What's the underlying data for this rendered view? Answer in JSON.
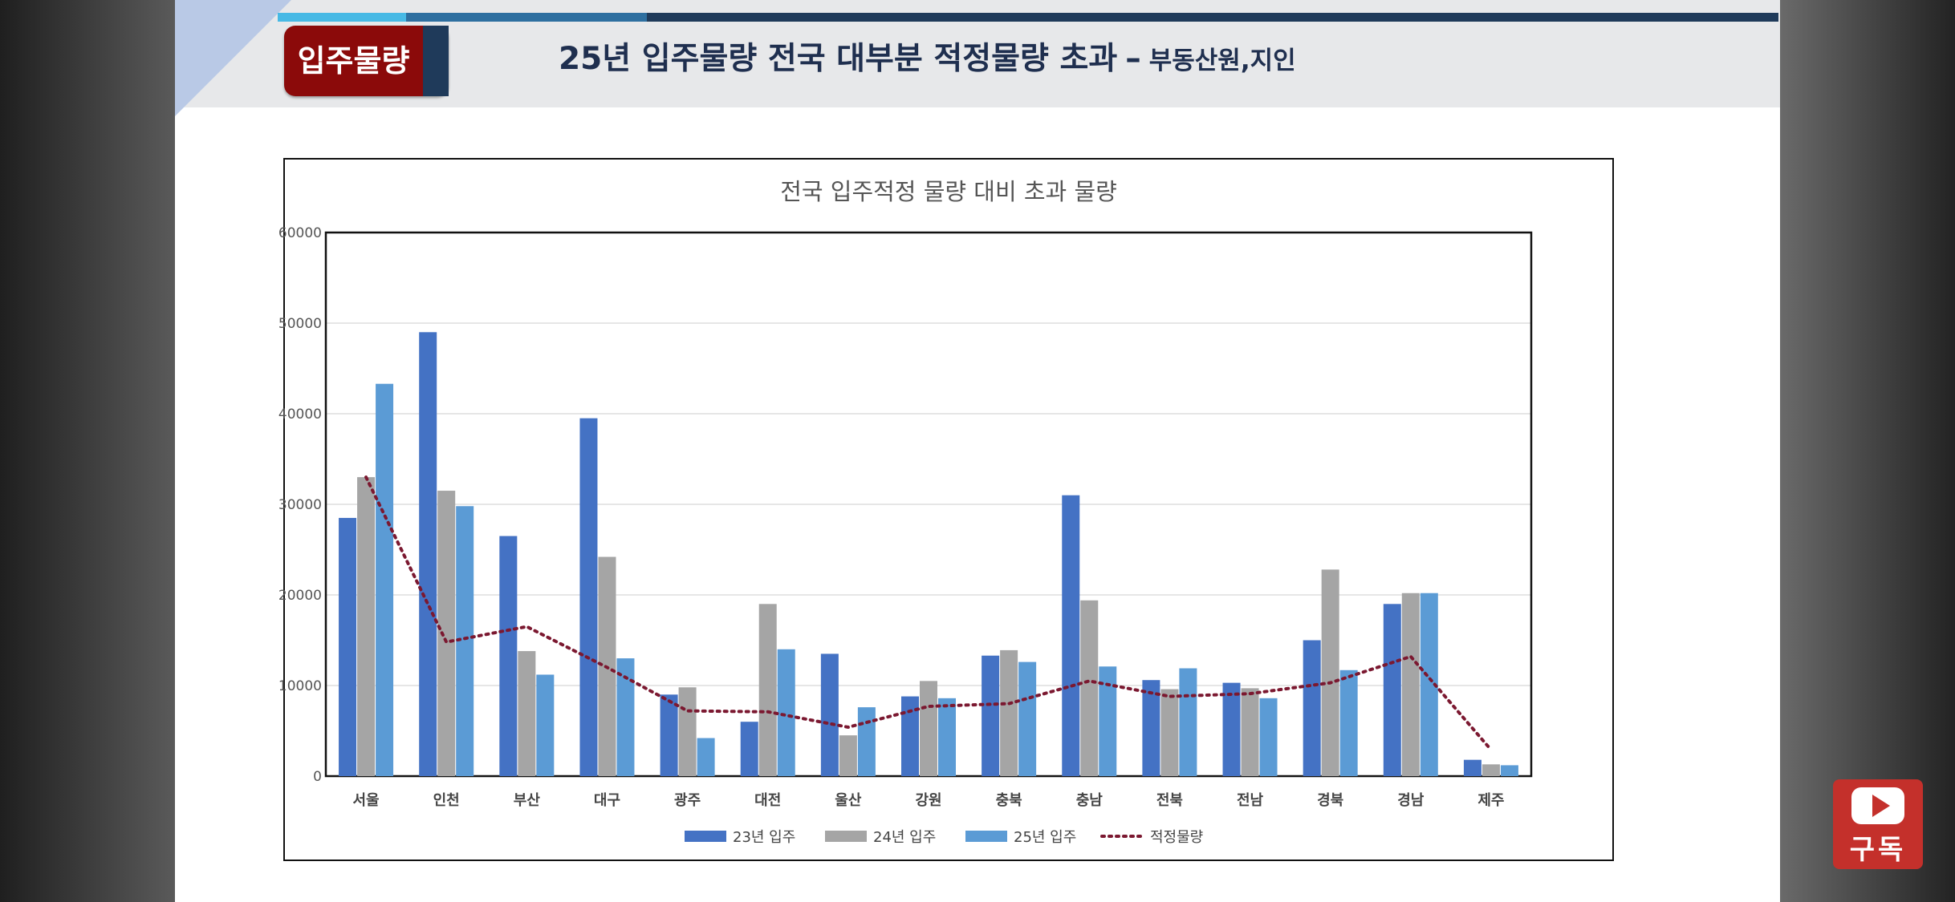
{
  "slide": {
    "badge": "입주물량",
    "headline": "25년 입주물량  전국 대부분 적정물량 초과",
    "separator": "–",
    "source": "부동산원,지인"
  },
  "youtube": {
    "label": "구독",
    "icon": "youtube-play-icon"
  },
  "colors": {
    "y23": "#4472c4",
    "y24": "#a5a5a5",
    "y25": "#5b9bd5",
    "proper": "#7b1830",
    "badge": "#8b0a0a",
    "headline": "#1f2f4f"
  },
  "chart_data": {
    "type": "bar",
    "title": "전국 입주적정 물량 대비 초과 물량",
    "xlabel": "",
    "ylabel": "",
    "ylim": [
      0,
      60000
    ],
    "yticks": [
      0,
      10000,
      20000,
      30000,
      40000,
      50000,
      60000
    ],
    "grid": true,
    "legend_position": "bottom",
    "categories": [
      "서울",
      "인천",
      "부산",
      "대구",
      "광주",
      "대전",
      "울산",
      "강원",
      "충북",
      "충남",
      "전북",
      "전남",
      "경북",
      "경남",
      "제주"
    ],
    "series": [
      {
        "name": "23년 입주",
        "type": "bar",
        "values": [
          28500,
          49000,
          26500,
          39500,
          9000,
          6000,
          13500,
          8800,
          13300,
          31000,
          10600,
          10300,
          15000,
          19000,
          1800
        ]
      },
      {
        "name": "24년 입주",
        "type": "bar",
        "values": [
          33000,
          31500,
          13800,
          24200,
          9800,
          19000,
          4500,
          10500,
          13900,
          19400,
          9600,
          9700,
          22800,
          20200,
          1300
        ]
      },
      {
        "name": "25년 입주",
        "type": "bar",
        "values": [
          43300,
          29800,
          11200,
          13000,
          4200,
          14000,
          7600,
          8600,
          12600,
          12100,
          11900,
          8600,
          11700,
          20200,
          1200
        ]
      },
      {
        "name": "적정물량",
        "type": "line",
        "style": "dotted",
        "values": [
          33000,
          14800,
          16500,
          12000,
          7200,
          7100,
          5400,
          7700,
          8000,
          10500,
          8800,
          9100,
          10300,
          13200,
          2900
        ]
      }
    ]
  }
}
